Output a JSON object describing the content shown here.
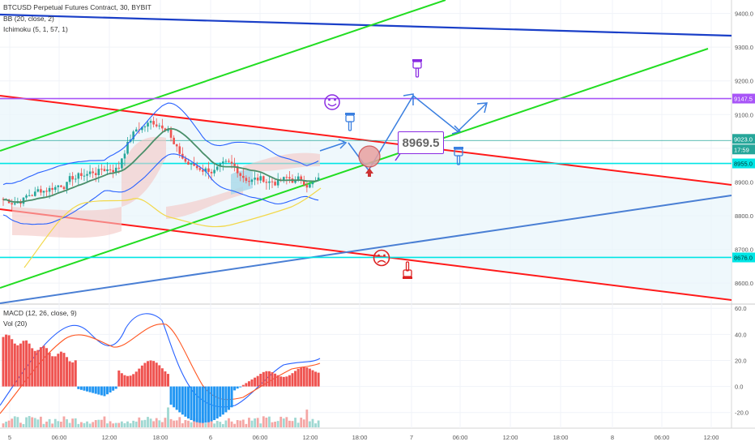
{
  "header": {
    "symbol_line": "BTCUSD Perpetual Futures Contract, 30, BYBIT",
    "indicator_bb": "BB (20, close, 2)",
    "indicator_ichimoku": "Ichimoku (5, 1, 57, 1)"
  },
  "lower_pane": {
    "macd_label": "MACD (12, 26, close, 9)",
    "vol_label": "Vol (20)"
  },
  "annotation": {
    "price_box": "8969.5"
  },
  "chart_data": [
    {
      "type": "line",
      "title": "BTCUSD Perpetual Futures Contract, 30, BYBIT",
      "ylim": [
        8540,
        9440
      ],
      "y_ticks": [
        "9400.0",
        "9300.0",
        "9200.0",
        "9100.0",
        "9000.0",
        "8900.0",
        "8800.0",
        "8700.0",
        "8600.0"
      ],
      "x_ticks": [
        "5",
        "06:00",
        "12:00",
        "18:00",
        "6",
        "06:00",
        "12:00",
        "18:00",
        "7",
        "06:00",
        "12:00",
        "18:00",
        "8",
        "06:00",
        "12:00"
      ],
      "price_tags": [
        {
          "value": "9147.5",
          "color": "#a855f7"
        },
        {
          "value": "9023.0",
          "color": "#26a69a"
        },
        {
          "value": "17:59",
          "color": "#26a69a"
        },
        {
          "value": "8955.0",
          "color": "#00e5e5"
        },
        {
          "value": "8676.0",
          "color": "#00e5e5"
        }
      ],
      "horizontal_levels": [
        {
          "price": 9147.5,
          "color": "#a855f7"
        },
        {
          "price": 9023,
          "color": "#26a69a"
        },
        {
          "price": 8955,
          "color": "#00e5e5"
        },
        {
          "price": 8676,
          "color": "#00e5e5"
        }
      ],
      "candles": {
        "count": 110,
        "close_start": 8850,
        "close_end": 9010,
        "low": 8780,
        "high": 9100,
        "up_color": "#26a69a",
        "down_color": "#ef5350"
      },
      "colors": {
        "bb_band": "#2962ff",
        "bb_basis": "#4a8f6a",
        "ichimoku_lag": "#f2d84a",
        "trend_red": "#ff1a1a",
        "trend_green": "#22dd22",
        "trend_navy": "#1a3fc8",
        "trend_blue": "#4a7fd4"
      }
    },
    {
      "type": "bar",
      "title": "MACD (12, 26, close, 9)",
      "ylim": [
        -32,
        62
      ],
      "y_ticks": [
        "60.0",
        "40.0",
        "20.0",
        "0.0",
        "-20.0"
      ],
      "series": [
        {
          "name": "MACD",
          "color": "#2962ff"
        },
        {
          "name": "Signal",
          "color": "#ff5722"
        }
      ],
      "histogram_colors": {
        "positive": "#ef5350",
        "negative": "#2196f3"
      }
    }
  ]
}
